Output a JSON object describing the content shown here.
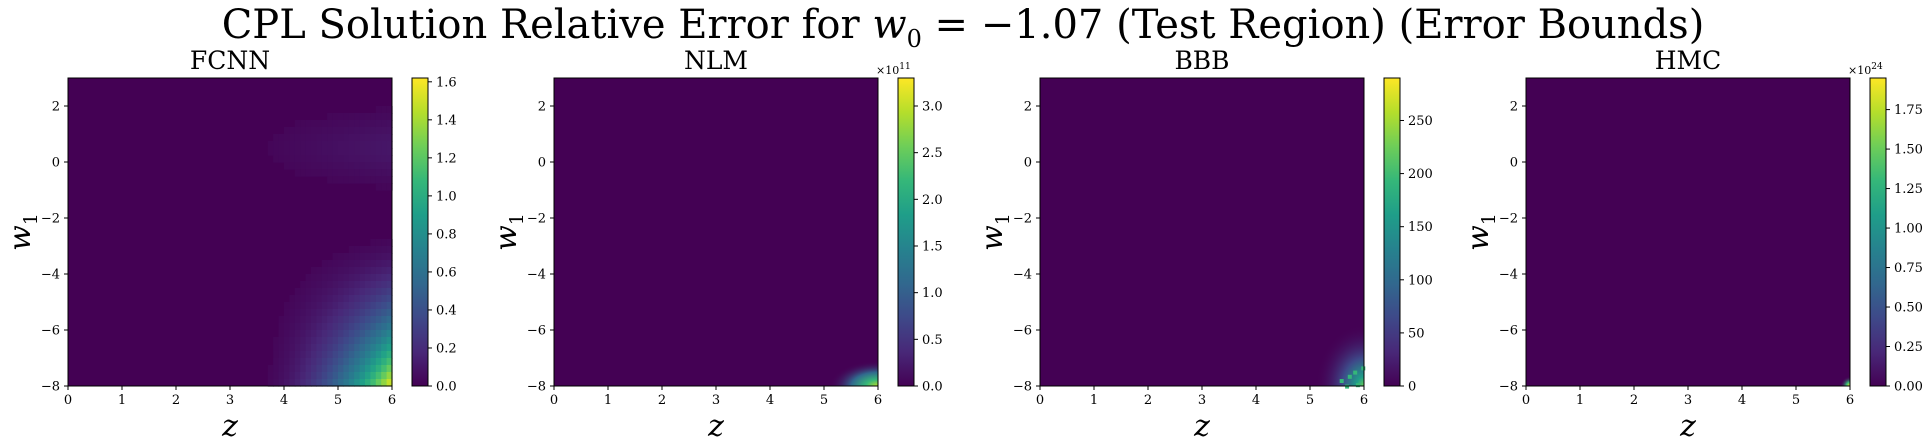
{
  "title": {
    "prefix": "CPL Solution Relative Error for ",
    "var": "w",
    "sub": "0",
    "suffix": " = −1.07 (Test Region) (Error Bounds)"
  },
  "colormap": [
    "#440154",
    "#482878",
    "#3e4989",
    "#31688e",
    "#26828e",
    "#1f9e89",
    "#35b779",
    "#6ece58",
    "#b5de2b",
    "#fde725"
  ],
  "chart_data": [
    {
      "type": "heatmap",
      "title": "FCNN",
      "xlabel": "z",
      "ylabel": "w",
      "ylabel_sub": "1",
      "xlim": [
        0,
        6
      ],
      "ylim": [
        -8,
        3
      ],
      "xticks": [
        "0",
        "1",
        "2",
        "3",
        "4",
        "5",
        "6"
      ],
      "xtick_values": [
        0,
        1,
        2,
        3,
        4,
        5,
        6
      ],
      "yticks": [
        "2",
        "0",
        "−2",
        "−4",
        "−6",
        "−8"
      ],
      "ytick_values": [
        2,
        0,
        -2,
        -4,
        -6,
        -8
      ],
      "colorbar_ticks": [
        "0.0",
        "0.2",
        "0.4",
        "0.6",
        "0.8",
        "1.0",
        "1.2",
        "1.4",
        "1.6"
      ],
      "colorbar_tick_values": [
        0,
        0.2,
        0.4,
        0.6,
        0.8,
        1.0,
        1.2,
        1.4,
        1.6
      ],
      "colorbar_range": [
        0,
        1.62
      ],
      "colorbar_exponent": "",
      "colorbar_exponent_power": "",
      "peak": {
        "z": 6.0,
        "w1": -8.0,
        "value": 1.6
      },
      "pattern": "smooth"
    },
    {
      "type": "heatmap",
      "title": "NLM",
      "xlabel": "z",
      "ylabel": "w",
      "ylabel_sub": "1",
      "xlim": [
        0,
        6
      ],
      "ylim": [
        -8,
        3
      ],
      "xticks": [
        "0",
        "1",
        "2",
        "3",
        "4",
        "5",
        "6"
      ],
      "xtick_values": [
        0,
        1,
        2,
        3,
        4,
        5,
        6
      ],
      "yticks": [
        "2",
        "0",
        "−2",
        "−4",
        "−6",
        "−8"
      ],
      "ytick_values": [
        2,
        0,
        -2,
        -4,
        -6,
        -8
      ],
      "colorbar_ticks": [
        "0.0",
        "0.5",
        "1.0",
        "1.5",
        "2.0",
        "2.5",
        "3.0"
      ],
      "colorbar_tick_values": [
        0,
        0.5,
        1.0,
        1.5,
        2.0,
        2.5,
        3.0
      ],
      "colorbar_range": [
        0,
        3.3
      ],
      "colorbar_exponent": "×10",
      "colorbar_exponent_power": "11",
      "peak": {
        "z": 6.0,
        "w1": -8.0,
        "value": 3.3
      },
      "pattern": "corner"
    },
    {
      "type": "heatmap",
      "title": "BBB",
      "xlabel": "z",
      "ylabel": "w",
      "ylabel_sub": "1",
      "xlim": [
        0,
        6
      ],
      "ylim": [
        -8,
        3
      ],
      "xticks": [
        "0",
        "1",
        "2",
        "3",
        "4",
        "5",
        "6"
      ],
      "xtick_values": [
        0,
        1,
        2,
        3,
        4,
        5,
        6
      ],
      "yticks": [
        "2",
        "0",
        "−2",
        "−4",
        "−6",
        "−8"
      ],
      "ytick_values": [
        2,
        0,
        -2,
        -4,
        -6,
        -8
      ],
      "colorbar_ticks": [
        "0",
        "50",
        "100",
        "150",
        "200",
        "250"
      ],
      "colorbar_tick_values": [
        0,
        50,
        100,
        150,
        200,
        250
      ],
      "colorbar_range": [
        0,
        290
      ],
      "colorbar_exponent": "",
      "colorbar_exponent_power": "",
      "peak": {
        "z": 6.0,
        "w1": -8.0,
        "value": 290
      },
      "pattern": "corner-speckle"
    },
    {
      "type": "heatmap",
      "title": "HMC",
      "xlabel": "z",
      "ylabel": "w",
      "ylabel_sub": "1",
      "xlim": [
        0,
        6
      ],
      "ylim": [
        -8,
        3
      ],
      "xticks": [
        "0",
        "1",
        "2",
        "3",
        "4",
        "5",
        "6"
      ],
      "xtick_values": [
        0,
        1,
        2,
        3,
        4,
        5,
        6
      ],
      "yticks": [
        "2",
        "0",
        "−2",
        "−4",
        "−6",
        "−8"
      ],
      "ytick_values": [
        2,
        0,
        -2,
        -4,
        -6,
        -8
      ],
      "colorbar_ticks": [
        "0.00",
        "0.25",
        "0.50",
        "0.75",
        "1.00",
        "1.25",
        "1.50",
        "1.75"
      ],
      "colorbar_tick_values": [
        0,
        0.25,
        0.5,
        0.75,
        1.0,
        1.25,
        1.5,
        1.75
      ],
      "colorbar_range": [
        0,
        1.95
      ],
      "colorbar_exponent": "×10",
      "colorbar_exponent_power": "24",
      "peak": {
        "z": 6.0,
        "w1": -8.0,
        "value": 1.95
      },
      "pattern": "tiny-corner"
    }
  ]
}
